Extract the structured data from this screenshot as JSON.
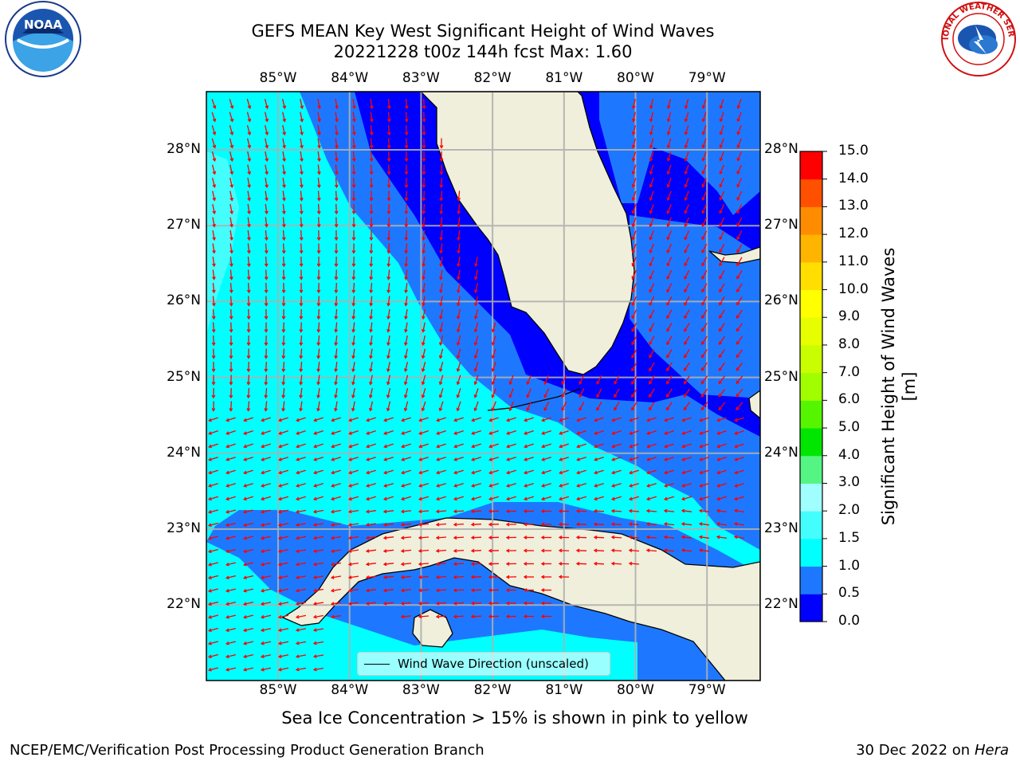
{
  "title": {
    "line1": "GEFS MEAN Key West Significant Height of Wind Waves",
    "line2": "20221228 t00z 144h fcst   Max: 1.60"
  },
  "map": {
    "lon_labels": [
      "85°W",
      "84°W",
      "83°W",
      "82°W",
      "81°W",
      "80°W",
      "79°W"
    ],
    "lat_labels": [
      "28°N",
      "27°N",
      "26°N",
      "25°N",
      "24°N",
      "23°N",
      "22°N"
    ],
    "land_color": "#efefdb",
    "grid_color": "#b0b0b0",
    "arrow_color": "#ff0000",
    "legend_label": "Wind Wave Direction (unscaled)"
  },
  "colorbar": {
    "title": "Significant Height of Wind Waves [m]",
    "tick_labels": [
      "0.0",
      "0.5",
      "1.0",
      "1.5",
      "2.0",
      "3.0",
      "4.0",
      "5.0",
      "6.0",
      "7.0",
      "8.0",
      "9.0",
      "10.0",
      "11.0",
      "12.0",
      "13.0",
      "14.0",
      "15.0"
    ],
    "colors": [
      "#0000ff",
      "#1e78ff",
      "#00ffff",
      "#44fefe",
      "#a0fffe",
      "#55f583",
      "#00e600",
      "#55f500",
      "#a0fe00",
      "#c8fe00",
      "#e6fe00",
      "#ffff00",
      "#ffde00",
      "#ffb400",
      "#ff8c00",
      "#ff5000",
      "#ff0000"
    ]
  },
  "logos": {
    "noaa_text": "NOAA",
    "nws_text": "NATIONAL WEATHER SERVICE"
  },
  "footnote": "Sea Ice Concentration > 15% is shown in pink to yellow",
  "credit_left": "NCEP/EMC/Verification Post Processing Product Generation Branch",
  "credit_date": "30 Dec 2022 on",
  "credit_host": "Hera"
}
